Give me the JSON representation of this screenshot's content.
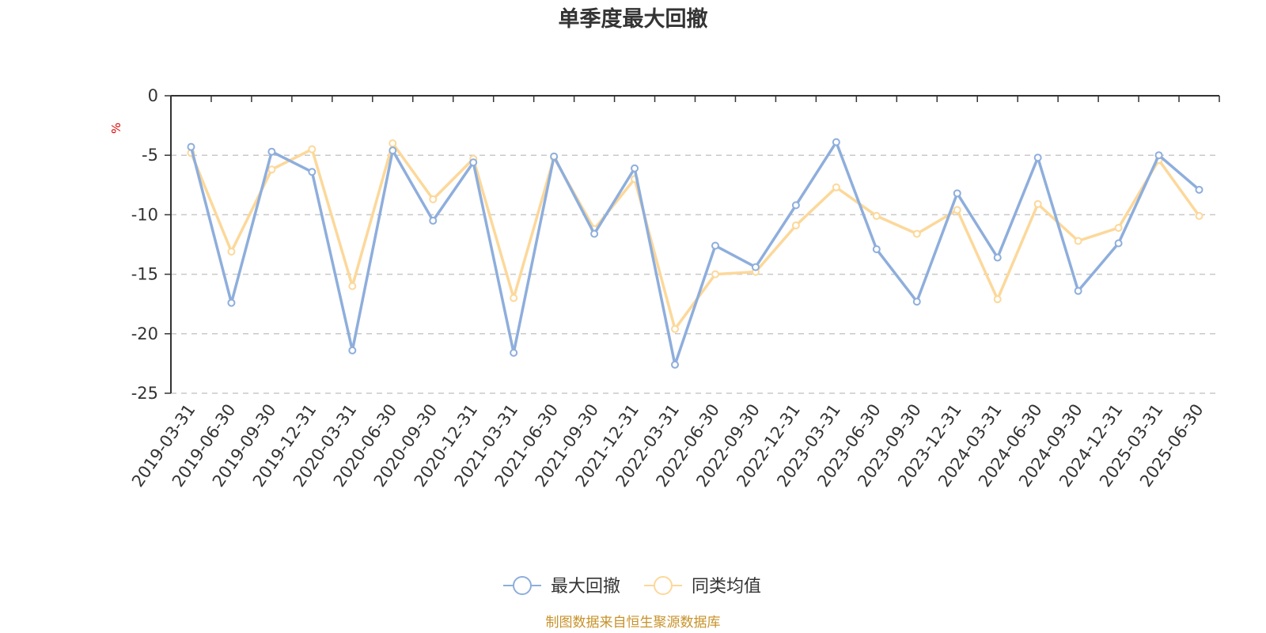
{
  "chart_data": {
    "type": "line",
    "title": "单季度最大回撤",
    "ylabel": "%",
    "ylim": [
      -25,
      0
    ],
    "yticks": [
      0,
      -5,
      -10,
      -15,
      -20,
      -25
    ],
    "grid": true,
    "legend_position": "bottom-center",
    "categories": [
      "2019-03-31",
      "2019-06-30",
      "2019-09-30",
      "2019-12-31",
      "2020-03-31",
      "2020-06-30",
      "2020-09-30",
      "2020-12-31",
      "2021-03-31",
      "2021-06-30",
      "2021-09-30",
      "2021-12-31",
      "2022-03-31",
      "2022-06-30",
      "2022-09-30",
      "2022-12-31",
      "2023-03-31",
      "2023-06-30",
      "2023-09-30",
      "2023-12-31",
      "2024-03-31",
      "2024-06-30",
      "2024-09-30",
      "2024-12-31",
      "2025-03-31",
      "2025-06-30"
    ],
    "series": [
      {
        "name": "最大回撤",
        "color": "#8eaedc",
        "values": [
          -4.3,
          -17.4,
          -4.7,
          -6.4,
          -21.4,
          -4.6,
          -10.5,
          -5.6,
          -21.6,
          -5.1,
          -11.6,
          -6.1,
          -22.6,
          -12.6,
          -14.4,
          -9.2,
          -3.9,
          -12.9,
          -17.3,
          -8.2,
          -13.6,
          -5.2,
          -16.4,
          -12.4,
          -5.0,
          -7.9
        ]
      },
      {
        "name": "同类均值",
        "color": "#fcd89a",
        "values": [
          -4.8,
          -13.1,
          -6.2,
          -4.5,
          -16.0,
          -4.0,
          -8.7,
          -5.3,
          -17.0,
          -5.2,
          -11.2,
          -7.0,
          -19.6,
          -15.0,
          -14.8,
          -10.9,
          -7.7,
          -10.1,
          -11.6,
          -9.6,
          -17.1,
          -9.1,
          -12.2,
          -11.1,
          -5.4,
          -10.1
        ]
      }
    ]
  },
  "footer": {
    "source": "制图数据来自恒生聚源数据库"
  }
}
